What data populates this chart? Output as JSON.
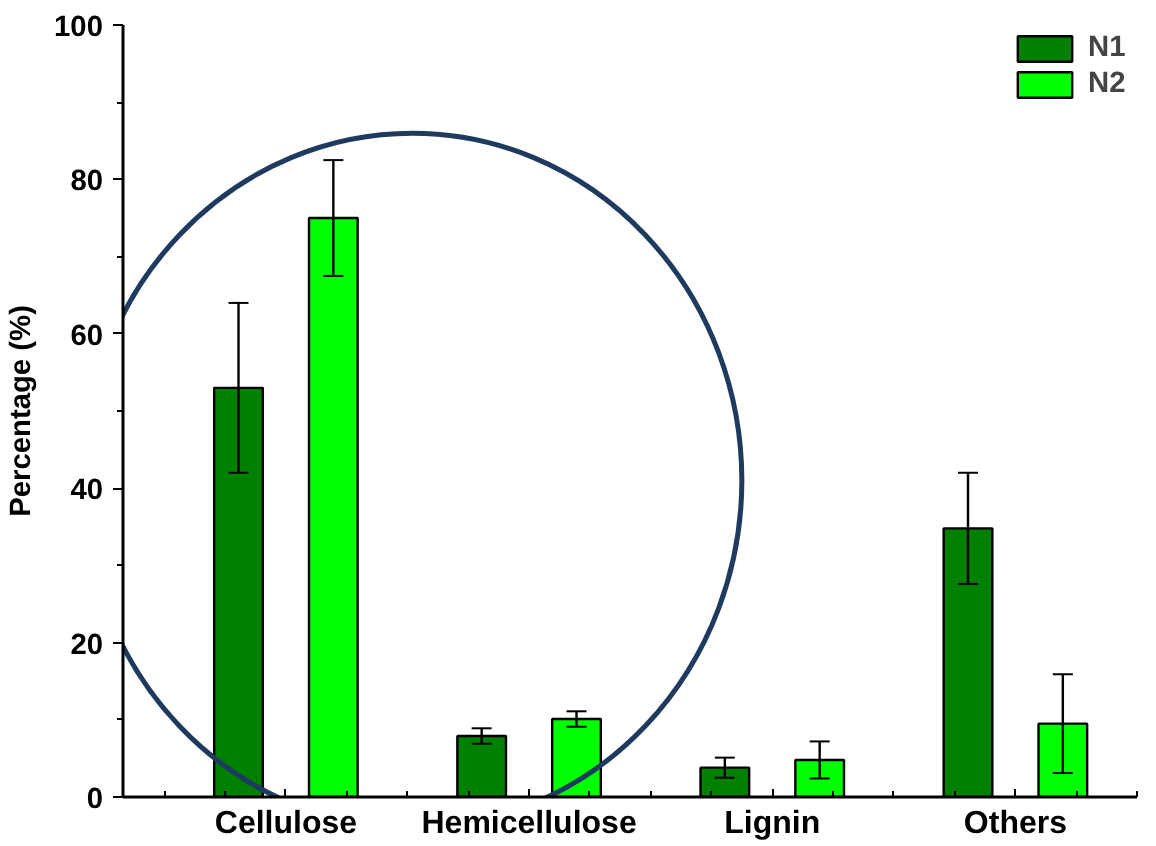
{
  "chart_data": {
    "type": "bar",
    "ylabel": "Percentage (%)",
    "categories": [
      "Cellulose",
      "Hemicellulose",
      "Lignin",
      "Others"
    ],
    "series": [
      {
        "name": "N1",
        "color": "#008000",
        "values": [
          53,
          7.9,
          3.8,
          34.8
        ],
        "errors": [
          11,
          1,
          1.3,
          7.2
        ]
      },
      {
        "name": "N2",
        "color": "#00ff00",
        "values": [
          75,
          10.1,
          4.8,
          9.5
        ],
        "errors": [
          7.5,
          1,
          2.4,
          6.4
        ]
      }
    ],
    "ylim": [
      0,
      100
    ],
    "yticks": [
      0,
      20,
      40,
      60,
      80,
      100
    ],
    "grid": false,
    "legend": "top right"
  }
}
